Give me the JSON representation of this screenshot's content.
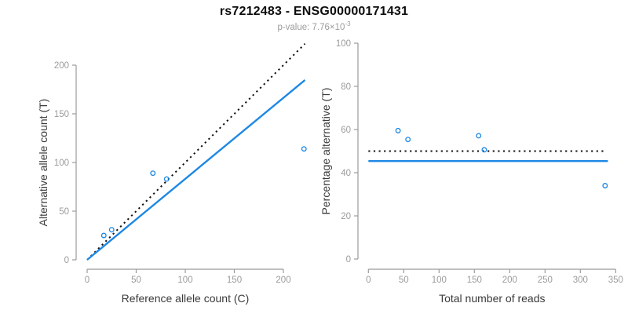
{
  "header": {
    "title": "rs7212483 - ENSG00000171431",
    "subtitle_main": "p-value: 7.76×10",
    "subtitle_exponent": "-3"
  },
  "colors": {
    "accent_blue": "#1E88E5",
    "dotted_line_black": "#111111",
    "axis_gray": "#9b9b9b",
    "axis_title_dark": "#3a3a3a",
    "subtitle_gray": "#9b9b9b",
    "title_black": "#0d0d0d"
  },
  "chart_data": [
    {
      "type": "scatter",
      "name": "allele-counts-plot",
      "xlabel": "Reference allele count (C)",
      "ylabel": "Alternative allele count (T)",
      "xticks": [
        0,
        50,
        100,
        150,
        200
      ],
      "yticks": [
        0,
        50,
        100,
        150,
        200
      ],
      "xlim": [
        0,
        222
      ],
      "ylim": [
        0,
        224
      ],
      "grid": false,
      "legend": "none",
      "points": [
        {
          "x": 17,
          "y": 25
        },
        {
          "x": 25,
          "y": 31
        },
        {
          "x": 67,
          "y": 89
        },
        {
          "x": 81,
          "y": 83
        },
        {
          "x": 221,
          "y": 114
        }
      ],
      "lines": [
        {
          "name": "identity-line",
          "style": "dotted",
          "color_key": "dotted_line_black",
          "x1": 0,
          "y1": 0,
          "x2": 222,
          "y2": 222,
          "slope": 1.0
        },
        {
          "name": "fit-line",
          "style": "solid",
          "color_key": "accent_blue",
          "x1": 0,
          "y1": 0,
          "x2": 222,
          "y2": 184.7,
          "slope": 0.832
        }
      ]
    },
    {
      "type": "scatter",
      "name": "percentage-plot",
      "xlabel": "Total number of reads",
      "ylabel": "Percentage alternative (T)",
      "xticks": [
        0,
        50,
        100,
        150,
        200,
        250,
        300,
        350
      ],
      "yticks": [
        0,
        20,
        40,
        60,
        80,
        100
      ],
      "xlim": [
        0,
        350
      ],
      "ylim": [
        0,
        100
      ],
      "grid": false,
      "legend": "none",
      "points": [
        {
          "x": 42,
          "y": 59.5
        },
        {
          "x": 56,
          "y": 55.4
        },
        {
          "x": 156,
          "y": 57.1
        },
        {
          "x": 164,
          "y": 50.6
        },
        {
          "x": 335,
          "y": 34.0
        }
      ],
      "lines": [
        {
          "name": "expected-50pct-line",
          "style": "dotted",
          "color_key": "dotted_line_black",
          "x1": 0,
          "y1": 50,
          "x2": 336,
          "y2": 50
        },
        {
          "name": "mean-pct-line",
          "style": "solid",
          "color_key": "accent_blue",
          "x1": 0,
          "y1": 45.4,
          "x2": 339,
          "y2": 45.4
        }
      ]
    }
  ]
}
